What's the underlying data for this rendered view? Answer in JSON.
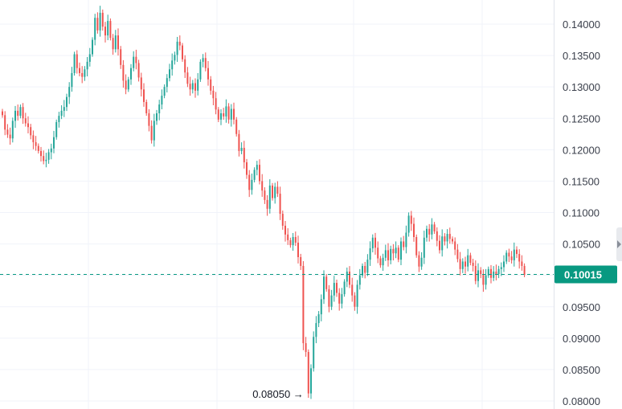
{
  "chart_data": {
    "type": "candlestick",
    "y_axis": {
      "min": 0.08,
      "max": 0.1425,
      "ticks": [
        "0.14000",
        "0.13500",
        "0.13000",
        "0.12500",
        "0.12000",
        "0.11500",
        "0.11000",
        "0.10500",
        "0.10000",
        "0.09500",
        "0.09000",
        "0.08500",
        "0.08000"
      ],
      "position": "right"
    },
    "grid": true,
    "current_price": {
      "label": "0.10015",
      "value": 0.10015,
      "color": "#089981"
    },
    "low_marker": {
      "label": "0.08050",
      "arrow": "→",
      "value": 0.0805
    },
    "colors": {
      "up": "#26a69a",
      "down": "#ef5350",
      "grid": "#f0f3fa",
      "axis_text": "#3a3f4b"
    },
    "close_prices": [
      0.1255,
      0.1232,
      0.1224,
      0.1218,
      0.1246,
      0.1262,
      0.1254,
      0.1268,
      0.125,
      0.1242,
      0.1236,
      0.1223,
      0.1212,
      0.1206,
      0.1198,
      0.119,
      0.1182,
      0.1184,
      0.1196,
      0.1202,
      0.122,
      0.1244,
      0.1254,
      0.1262,
      0.1268,
      0.1284,
      0.13,
      0.1322,
      0.1352,
      0.133,
      0.1322,
      0.1316,
      0.1328,
      0.134,
      0.1352,
      0.1375,
      0.141,
      0.139,
      0.1418,
      0.1396,
      0.1382,
      0.1405,
      0.1378,
      0.136,
      0.1382,
      0.136,
      0.1335,
      0.131,
      0.1296,
      0.1312,
      0.133,
      0.1348,
      0.1338,
      0.1315,
      0.1296,
      0.1276,
      0.1258,
      0.1238,
      0.1215,
      0.1246,
      0.1258,
      0.1272,
      0.1286,
      0.13,
      0.1314,
      0.1328,
      0.1342,
      0.1351,
      0.1372,
      0.1366,
      0.1344,
      0.1323,
      0.1305,
      0.1296,
      0.1306,
      0.1294,
      0.1312,
      0.134,
      0.1346,
      0.133,
      0.1312,
      0.1294,
      0.1282,
      0.1264,
      0.1248,
      0.1258,
      0.1253,
      0.1269,
      0.1248,
      0.1265,
      0.1248,
      0.1225,
      0.1198,
      0.1203,
      0.118,
      0.116,
      0.1136,
      0.1152,
      0.1168,
      0.1176,
      0.115,
      0.1135,
      0.112,
      0.1106,
      0.1143,
      0.1123,
      0.1141,
      0.113,
      0.1098,
      0.1079,
      0.1065,
      0.1056,
      0.1048,
      0.1061,
      0.1052,
      0.1029,
      0.1015,
      0.0892,
      0.0878,
      0.0812,
      0.0852,
      0.0902,
      0.0924,
      0.0938,
      0.0962,
      0.0998,
      0.0978,
      0.095,
      0.0968,
      0.0988,
      0.0972,
      0.0955,
      0.097,
      0.099,
      0.1006,
      0.0985,
      0.0968,
      0.095,
      0.0985,
      0.1,
      0.1015,
      0.1004,
      0.1025,
      0.1043,
      0.106,
      0.1044,
      0.1027,
      0.1016,
      0.1028,
      0.104,
      0.1024,
      0.1042,
      0.1035,
      0.1044,
      0.1025,
      0.1054,
      0.1045,
      0.1068,
      0.1095,
      0.1082,
      0.1061,
      0.1032,
      0.1014,
      0.1028,
      0.106,
      0.1074,
      0.1065,
      0.1081,
      0.107,
      0.1055,
      0.104,
      0.1062,
      0.1054,
      0.1066,
      0.1058,
      0.1054,
      0.1041,
      0.1026,
      0.101,
      0.1022,
      0.1014,
      0.1032,
      0.102,
      0.1015,
      0.0991,
      0.1008,
      0.1002,
      0.0985,
      0.1,
      0.101,
      0.0996,
      0.1006,
      0.1002,
      0.101,
      0.1013,
      0.1022,
      0.1036,
      0.103,
      0.1024,
      0.1041,
      0.1034,
      0.1022,
      0.1015,
      0.1001
    ]
  }
}
